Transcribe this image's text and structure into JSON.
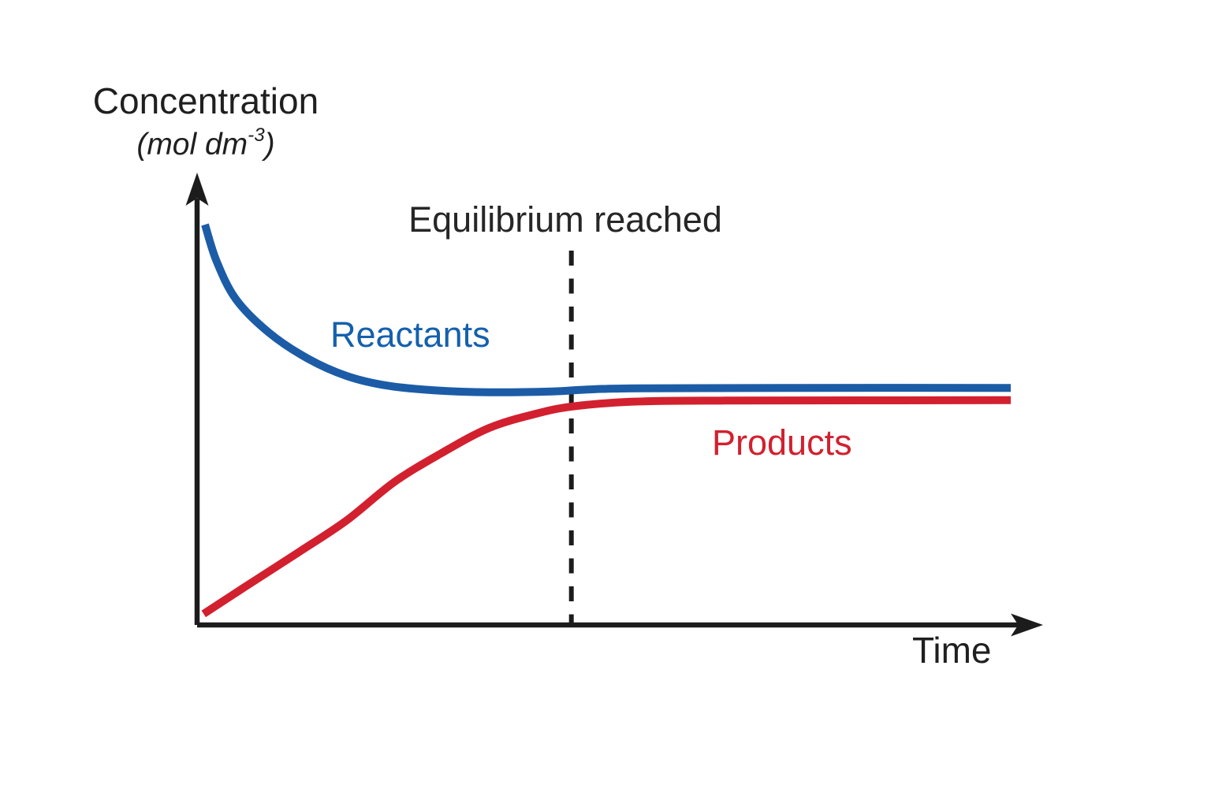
{
  "figure": {
    "background": "#ffffff",
    "axis_color": "#1c1c1c",
    "dashed_line_color": "#1c1c1c"
  },
  "chart_data": {
    "type": "line",
    "title": "",
    "xlabel": "Time",
    "ylabel": "Concentration (mol dm⁻³)",
    "ylabel_title": "Concentration",
    "ylabel_unit_main": "(mol dm",
    "ylabel_unit_sup": "-3",
    "ylabel_unit_close": ")",
    "x_range": [
      0,
      100
    ],
    "y_range": [
      0,
      110
    ],
    "grid": false,
    "ticks": "none (qualitative sketch, unlabeled axes)",
    "legend": "inline colored series labels",
    "series": [
      {
        "name": "Reactants",
        "color": "#1c5ca6",
        "label_color": "#1460ad",
        "description": "starts high, decays exponentially, levels off slightly above Products",
        "x": [
          0.97,
          2.4,
          4.8,
          8.8,
          13.6,
          18.4,
          23.3,
          29.1,
          35.9,
          43.6,
          48.0,
          54.3,
          72.7,
          100
        ],
        "y": [
          101.0,
          91.7,
          82.1,
          73.8,
          67.2,
          62.8,
          60.4,
          59.2,
          58.7,
          58.9,
          59.4,
          59.7,
          59.8,
          59.8
        ]
      },
      {
        "name": "Products",
        "color": "#d2202f",
        "label_color": "#d2202f",
        "description": "starts near zero, rises and levels off just below Reactants",
        "x": [
          0.8,
          5.8,
          12.6,
          18.4,
          24.2,
          30.0,
          35.9,
          41.7,
          46.1,
          53.3,
          65,
          100
        ],
        "y": [
          2.8,
          9.5,
          18.5,
          26.4,
          36.0,
          43.3,
          49.7,
          53.3,
          55.1,
          56.3,
          56.6,
          56.7
        ]
      }
    ],
    "annotations": [
      {
        "text": "Equilibrium reached",
        "type": "vertical-dashed-line",
        "x": 46,
        "color": "#1c1c1c"
      }
    ]
  }
}
